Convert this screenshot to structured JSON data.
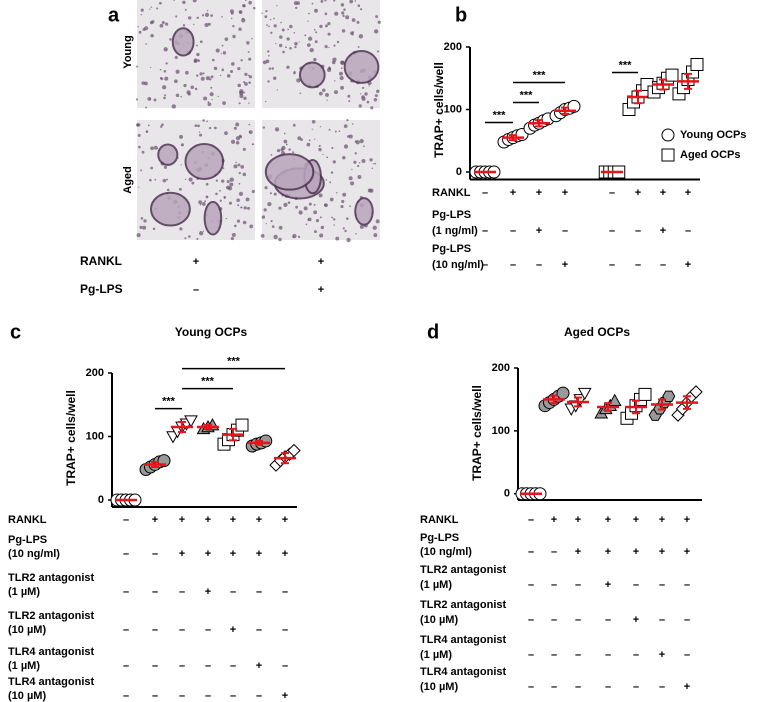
{
  "panel_a": {
    "panel_label": "a",
    "rows": [
      "Young",
      "Aged"
    ],
    "conditions": [
      {
        "label": "RANKL",
        "cells": [
          "+",
          "+"
        ]
      },
      {
        "label": "Pg-LPS",
        "cells": [
          "–",
          "+"
        ]
      }
    ]
  },
  "chart_data": [
    {
      "panel_label": "b",
      "type": "scatter",
      "ylabel": "TRAP+ cells/well",
      "ylim": [
        -12,
        200
      ],
      "yticks": [
        0,
        100,
        200
      ],
      "mean_color": "#e8141b",
      "legend": [
        {
          "name": "Young OCPs",
          "marker": "circle"
        },
        {
          "name": "Aged OCPs",
          "marker": "square"
        }
      ],
      "groups": [
        {
          "marker": "circle",
          "fill": "#ffffff",
          "values": [
            0,
            0,
            0,
            0,
            0
          ],
          "mean": 0,
          "error": 0
        },
        {
          "marker": "circle",
          "fill": "#ffffff",
          "values": [
            48,
            52,
            55,
            58,
            60
          ],
          "mean": 55,
          "error": 4
        },
        {
          "marker": "circle",
          "fill": "#ffffff",
          "values": [
            70,
            75,
            78,
            82,
            85
          ],
          "mean": 78,
          "error": 5
        },
        {
          "marker": "circle",
          "fill": "#ffffff",
          "values": [
            90,
            95,
            100,
            102,
            105
          ],
          "mean": 98,
          "error": 5
        },
        {
          "marker": "square",
          "fill": "#ffffff",
          "values": [
            0,
            0,
            0,
            0
          ],
          "mean": 0,
          "error": 0
        },
        {
          "marker": "square",
          "fill": "#ffffff",
          "values": [
            100,
            112,
            120,
            130,
            140
          ],
          "mean": 120,
          "error": 10
        },
        {
          "marker": "square",
          "fill": "#ffffff",
          "values": [
            128,
            135,
            142,
            150,
            155
          ],
          "mean": 140,
          "error": 8
        },
        {
          "marker": "square",
          "fill": "#ffffff",
          "values": [
            125,
            135,
            148,
            160,
            172
          ],
          "mean": 145,
          "error": 12
        }
      ],
      "comparisons": [
        {
          "label": "***",
          "groups": [
            0,
            1
          ]
        },
        {
          "label": "***",
          "groups": [
            1,
            2
          ]
        },
        {
          "label": "***",
          "groups": [
            1,
            3
          ]
        },
        {
          "label": "***",
          "groups": [
            4,
            5
          ]
        }
      ],
      "conditions": [
        {
          "label": [
            "RANKL"
          ],
          "cells": [
            "–",
            "+",
            "+",
            "+",
            "–",
            "+",
            "+",
            "+"
          ]
        },
        {
          "label": [
            "Pg-LPS",
            "(1 ng/ml)"
          ],
          "cells": [
            "–",
            "–",
            "+",
            "–",
            "–",
            "–",
            "+",
            "–"
          ]
        },
        {
          "label": [
            "Pg-LPS",
            "(10 ng/ml)"
          ],
          "cells": [
            "–",
            "–",
            "–",
            "+",
            "–",
            "–",
            "–",
            "+"
          ]
        }
      ]
    },
    {
      "panel_label": "c",
      "type": "scatter",
      "title": "Young OCPs",
      "ylabel": "TRAP+ cells/well",
      "ylim": [
        -11,
        200
      ],
      "yticks": [
        0,
        100,
        200
      ],
      "mean_color": "#e8141b",
      "groups": [
        {
          "marker": "circle",
          "fill": "#ffffff",
          "values": [
            0,
            0,
            0,
            0,
            0
          ],
          "mean": 0,
          "error": 0
        },
        {
          "marker": "circle",
          "fill": "#999999",
          "values": [
            48,
            52,
            56,
            60,
            62
          ],
          "mean": 56,
          "error": 4
        },
        {
          "marker": "triangle-down",
          "fill": "#ffffff",
          "values": [
            100,
            108,
            115,
            120,
            125
          ],
          "mean": 115,
          "error": 8
        },
        {
          "marker": "triangle-up",
          "fill": "#999999",
          "values": [
            112,
            115,
            118
          ],
          "mean": 115,
          "error": 3
        },
        {
          "marker": "square",
          "fill": "#ffffff",
          "values": [
            88,
            95,
            103,
            110,
            118
          ],
          "mean": 103,
          "error": 9
        },
        {
          "marker": "circle",
          "fill": "#999999",
          "values": [
            85,
            88,
            90,
            93
          ],
          "mean": 90,
          "error": 3
        },
        {
          "marker": "diamond",
          "fill": "#ffffff",
          "values": [
            55,
            62,
            68,
            72,
            78
          ],
          "mean": 66,
          "error": 8
        }
      ],
      "comparisons": [
        {
          "label": "***",
          "groups": [
            1,
            2
          ]
        },
        {
          "label": "***",
          "groups": [
            2,
            4
          ]
        },
        {
          "label": "***",
          "groups": [
            2,
            6
          ]
        }
      ],
      "conditions": [
        {
          "label": [
            "RANKL"
          ],
          "cells": [
            "–",
            "+",
            "+",
            "+",
            "+",
            "+",
            "+"
          ]
        },
        {
          "label": [
            "Pg-LPS",
            "(10 ng/ml)"
          ],
          "cells": [
            "–",
            "–",
            "+",
            "+",
            "+",
            "+",
            "+"
          ]
        },
        {
          "label": [
            "TLR2 antagonist",
            "(1 µM)"
          ],
          "cells": [
            "–",
            "–",
            "–",
            "+",
            "–",
            "–",
            "–"
          ]
        },
        {
          "label": [
            "TLR2 antagonist",
            "(10 µM)"
          ],
          "cells": [
            "–",
            "–",
            "–",
            "–",
            "+",
            "–",
            "–"
          ]
        },
        {
          "label": [
            "TLR4 antagonist",
            "(1 µM)"
          ],
          "cells": [
            "–",
            "–",
            "–",
            "–",
            "–",
            "+",
            "–"
          ]
        },
        {
          "label": [
            "TLR4 antagonist",
            "(10 µM)"
          ],
          "cells": [
            "–",
            "–",
            "–",
            "–",
            "–",
            "–",
            "+"
          ]
        }
      ]
    },
    {
      "panel_label": "d",
      "type": "scatter",
      "title": "Aged OCPs",
      "ylabel": "TRAP+ cells/well",
      "ylim": [
        -10,
        200
      ],
      "yticks": [
        0,
        100,
        200
      ],
      "mean_color": "#e8141b",
      "groups": [
        {
          "marker": "circle",
          "fill": "#ffffff",
          "values": [
            0,
            0,
            0,
            0,
            0
          ],
          "mean": 0,
          "error": 0
        },
        {
          "marker": "circle",
          "fill": "#999999",
          "values": [
            140,
            145,
            150,
            155,
            160
          ],
          "mean": 150,
          "error": 6
        },
        {
          "marker": "triangle-down",
          "fill": "#ffffff",
          "values": [
            135,
            140,
            150,
            160
          ],
          "mean": 146,
          "error": 7
        },
        {
          "marker": "triangle-up",
          "fill": "#999999",
          "values": [
            128,
            135,
            140,
            148
          ],
          "mean": 138,
          "error": 6
        },
        {
          "marker": "square",
          "fill": "#ffffff",
          "values": [
            120,
            128,
            140,
            150,
            158
          ],
          "mean": 138,
          "error": 10
        },
        {
          "marker": "hexagon",
          "fill": "#999999",
          "values": [
            125,
            135,
            145,
            155
          ],
          "mean": 142,
          "error": 8
        },
        {
          "marker": "diamond",
          "fill": "#ffffff",
          "values": [
            125,
            135,
            145,
            155,
            162
          ],
          "mean": 145,
          "error": 10
        }
      ],
      "comparisons": [],
      "conditions": [
        {
          "label": [
            "RANKL"
          ],
          "cells": [
            "–",
            "+",
            "+",
            "+",
            "+",
            "+",
            "+"
          ]
        },
        {
          "label": [
            "Pg-LPS",
            "(10 ng/ml)"
          ],
          "cells": [
            "–",
            "–",
            "+",
            "+",
            "+",
            "+",
            "+"
          ]
        },
        {
          "label": [
            "TLR2 antagonist",
            "(1 µM)"
          ],
          "cells": [
            "–",
            "–",
            "–",
            "+",
            "–",
            "–",
            "–"
          ]
        },
        {
          "label": [
            "TLR2 antagonist",
            "(10 µM)"
          ],
          "cells": [
            "–",
            "–",
            "–",
            "–",
            "+",
            "–",
            "–"
          ]
        },
        {
          "label": [
            "TLR4 antagonist",
            "(1 µM)"
          ],
          "cells": [
            "–",
            "–",
            "–",
            "–",
            "–",
            "+",
            "–"
          ]
        },
        {
          "label": [
            "TLR4 antagonist",
            "(10 µM)"
          ],
          "cells": [
            "–",
            "–",
            "–",
            "–",
            "–",
            "–",
            "+"
          ]
        }
      ]
    }
  ]
}
